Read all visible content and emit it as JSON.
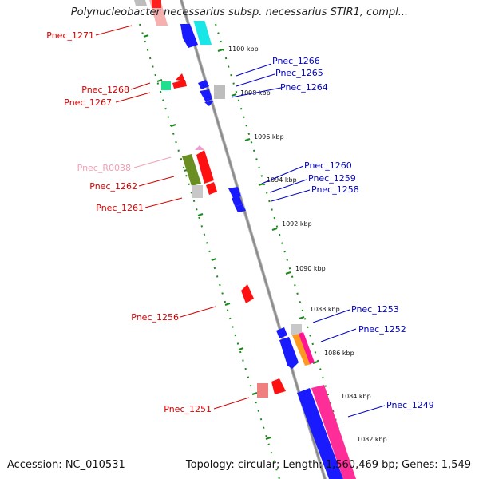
{
  "title": "Polynucleobacter necessarius subsp. necessarius STIR1, compl...",
  "footer": {
    "accession": "Accession: NC_010531",
    "summary": "Topology: circular; Length: 1,560,469 bp; Genes: 1,549"
  },
  "colors": {
    "forward_label": "#d40000",
    "reverse_label": "#0000c8",
    "rna_label": "#f0a0b4",
    "backbone": "#8a8a8a",
    "tick": "#1a8a1a"
  },
  "scale_labels": [
    "1100 kbp",
    "1098 kbp",
    "1096 kbp",
    "1094 kbp",
    "1092 kbp",
    "1090 kbp",
    "1088 kbp",
    "1086 kbp",
    "1084 kbp",
    "1082 kbp"
  ],
  "gene_labels": {
    "left": [
      "Pnec_1271",
      "Pnec_1268",
      "Pnec_1267",
      "Pnec_R0038",
      "Pnec_1262",
      "Pnec_1261",
      "Pnec_1256",
      "Pnec_1251"
    ],
    "right": [
      "Pnec_1266",
      "Pnec_1265",
      "Pnec_1264",
      "Pnec_1260",
      "Pnec_1259",
      "Pnec_1258",
      "Pnec_1253",
      "Pnec_1252",
      "Pnec_1249"
    ]
  }
}
